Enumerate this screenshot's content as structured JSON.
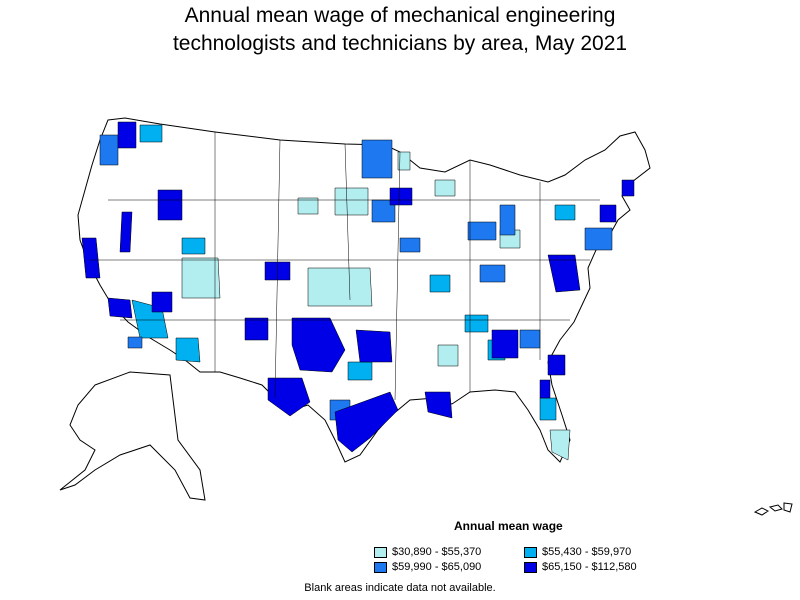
{
  "title_line1": "Annual mean wage of mechanical engineering",
  "title_line2": "technologists and technicians by area, May 2021",
  "legend": {
    "title": "Annual mean wage",
    "items": [
      {
        "label": "$30,890 - $55,370",
        "color": "#b2eef0"
      },
      {
        "label": "$55,430 - $59,970",
        "color": "#00b0f0"
      },
      {
        "label": "$59,990 - $65,090",
        "color": "#1e78f0"
      },
      {
        "label": "$65,150 - $112,580",
        "color": "#0000e6"
      }
    ]
  },
  "footnote": "Blank areas indicate data not available.",
  "colors": {
    "blank": "#ffffff",
    "border": "#000000"
  }
}
